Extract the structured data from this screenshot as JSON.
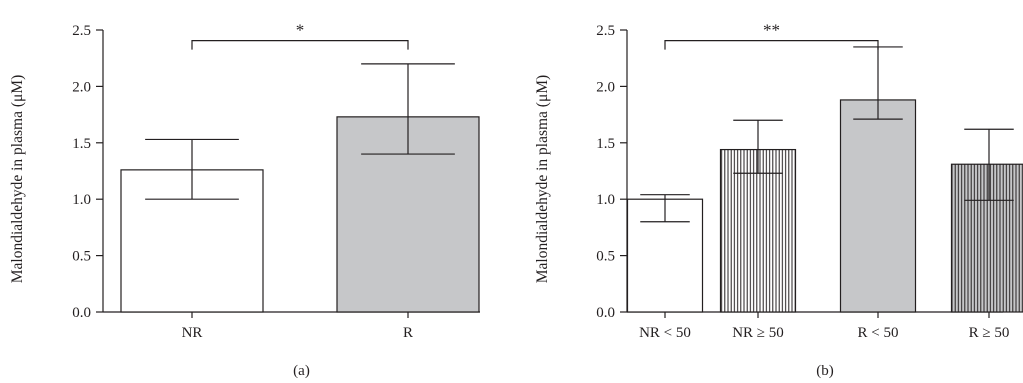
{
  "chart_data": [
    {
      "type": "bar",
      "panel_label": "(a)",
      "categories": [
        "NR",
        "R"
      ],
      "values": [
        1.26,
        1.73
      ],
      "error_upper": [
        1.53,
        2.2
      ],
      "error_lower": [
        1.0,
        1.4
      ],
      "fills": [
        "#ffffff",
        "#c6c7c9"
      ],
      "patterns": [
        "none",
        "none"
      ],
      "ylabel": "Malondialdehyde in plasma (μM)",
      "ylim": [
        0,
        2.5
      ],
      "yticks": [
        "0.0",
        "0.5",
        "1.0",
        "1.5",
        "2.0",
        "2.5"
      ],
      "significance": [
        {
          "from": 0,
          "to": 1,
          "label": "*",
          "y": 2.45
        }
      ]
    },
    {
      "type": "bar",
      "panel_label": "(b)",
      "categories": [
        "NR < 50",
        "NR ≥ 50",
        "R < 50",
        "R ≥ 50"
      ],
      "values": [
        1.0,
        1.44,
        1.88,
        1.31
      ],
      "error_upper": [
        1.04,
        1.7,
        2.35,
        1.62
      ],
      "error_lower": [
        0.8,
        1.23,
        1.71,
        0.99
      ],
      "fills": [
        "#ffffff",
        "#ffffff",
        "#c6c7c9",
        "#c6c7c9"
      ],
      "patterns": [
        "none",
        "vlines",
        "none",
        "vlines"
      ],
      "ylabel": "Malondialdehyde in plasma (μM)",
      "ylim": [
        0,
        2.5
      ],
      "yticks": [
        "0.0",
        "0.5",
        "1.0",
        "1.5",
        "2.0",
        "2.5"
      ],
      "significance": [
        {
          "from": 0,
          "to": 2,
          "label": "**",
          "y": 2.45
        }
      ]
    }
  ]
}
